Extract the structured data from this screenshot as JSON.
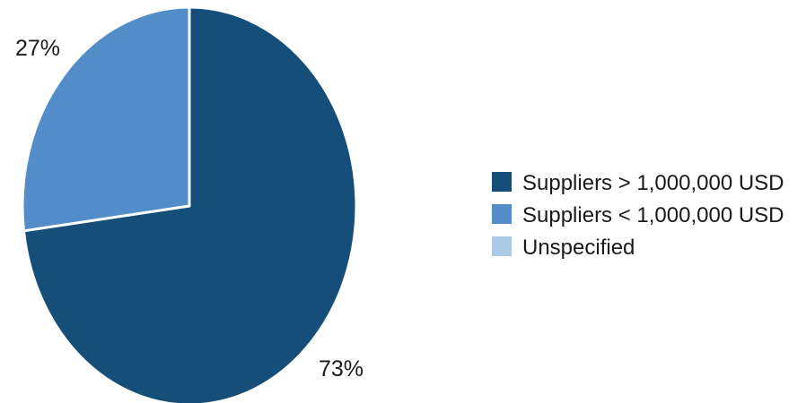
{
  "chart_data": {
    "type": "pie",
    "title": "",
    "slices": [
      {
        "label": "Suppliers > 1,000,000 USD",
        "value": 73,
        "display": "73%",
        "color": "#154e78"
      },
      {
        "label": "Suppliers < 1,000,000 USD",
        "value": 27,
        "display": "27%",
        "color": "#528cc9"
      },
      {
        "label": "Unspecified",
        "value": 0,
        "display": "",
        "color": "#a9c9e4"
      }
    ],
    "legend": {
      "position": "right",
      "entries": [
        {
          "label": "Suppliers > 1,000,000 USD",
          "color": "#154e78"
        },
        {
          "label": "Suppliers < 1,000,000 USD",
          "color": "#528cc9"
        },
        {
          "label": "Unspecified",
          "color": "#a9c9e4"
        }
      ]
    }
  }
}
